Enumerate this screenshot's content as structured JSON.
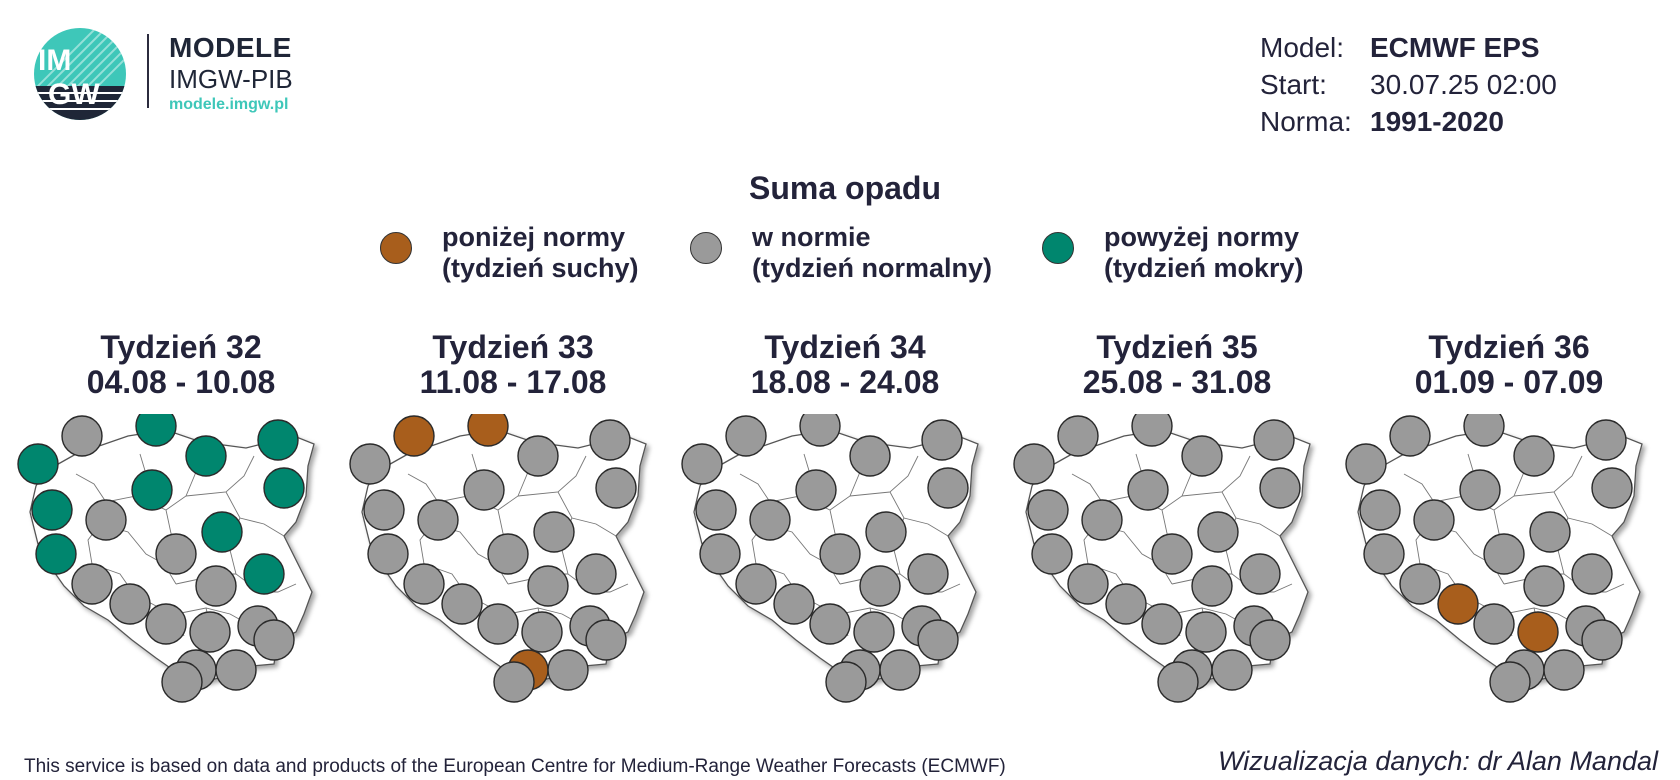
{
  "logo": {
    "title": "MODELE",
    "subtitle": "IMGW-PIB",
    "url": "modele.imgw.pl",
    "mark_top": "IM",
    "mark_bottom": "GW",
    "colors": {
      "teal": "#3ec7b9",
      "navy": "#1f2637"
    }
  },
  "meta": {
    "model_label": "Model:",
    "model_value": "ECMWF EPS",
    "start_label": "Start:",
    "start_value": "30.07.25 02:00",
    "norma_label": "Norma:",
    "norma_value": "1991-2020"
  },
  "title": "Suma opadu",
  "legend": [
    {
      "key": "below",
      "color": "#a85e1c",
      "line1": "poniżej normy",
      "line2": "(tydzień suchy)"
    },
    {
      "key": "normal",
      "color": "#9a9a9a",
      "line1": "w normie",
      "line2": "(tydzień normalny)"
    },
    {
      "key": "above",
      "color": "#00866e",
      "line1": "powyżej normy",
      "line2": "(tydzień mokry)"
    }
  ],
  "station_colors": {
    "below": "#a85e1c",
    "normal": "#9a9a9a",
    "above": "#00866e"
  },
  "weeks": [
    {
      "label": "Tydzień 32",
      "dates": "04.08 - 10.08",
      "stations": [
        "above",
        "normal",
        "above",
        "above",
        "above",
        "above",
        "above",
        "normal",
        "above",
        "above",
        "normal",
        "above",
        "above",
        "normal",
        "normal",
        "normal",
        "normal",
        "normal",
        "normal",
        "normal",
        "normal",
        "normal",
        "normal"
      ]
    },
    {
      "label": "Tydzień 33",
      "dates": "11.08 - 17.08",
      "stations": [
        "normal",
        "below",
        "below",
        "normal",
        "normal",
        "normal",
        "normal",
        "normal",
        "normal",
        "normal",
        "normal",
        "normal",
        "normal",
        "normal",
        "normal",
        "normal",
        "normal",
        "normal",
        "normal",
        "below",
        "normal",
        "normal",
        "normal"
      ]
    },
    {
      "label": "Tydzień 34",
      "dates": "18.08 - 24.08",
      "stations": [
        "normal",
        "normal",
        "normal",
        "normal",
        "normal",
        "normal",
        "normal",
        "normal",
        "normal",
        "normal",
        "normal",
        "normal",
        "normal",
        "normal",
        "normal",
        "normal",
        "normal",
        "normal",
        "normal",
        "normal",
        "normal",
        "normal",
        "normal"
      ]
    },
    {
      "label": "Tydzień 35",
      "dates": "25.08 - 31.08",
      "stations": [
        "normal",
        "normal",
        "normal",
        "normal",
        "normal",
        "normal",
        "normal",
        "normal",
        "normal",
        "normal",
        "normal",
        "normal",
        "normal",
        "normal",
        "normal",
        "normal",
        "normal",
        "normal",
        "normal",
        "normal",
        "normal",
        "normal",
        "normal"
      ]
    },
    {
      "label": "Tydzień 36",
      "dates": "01.09 - 07.09",
      "stations": [
        "normal",
        "normal",
        "normal",
        "normal",
        "normal",
        "normal",
        "normal",
        "normal",
        "normal",
        "normal",
        "normal",
        "normal",
        "normal",
        "normal",
        "normal",
        "below",
        "normal",
        "below",
        "normal",
        "normal",
        "normal",
        "normal",
        "normal"
      ]
    }
  ],
  "footer_left": "This service is based on data and products of the European Centre for Medium-Range Weather Forecasts (ECMWF)",
  "footer_right": "Wizualizacja danych: dr Alan Mandal"
}
